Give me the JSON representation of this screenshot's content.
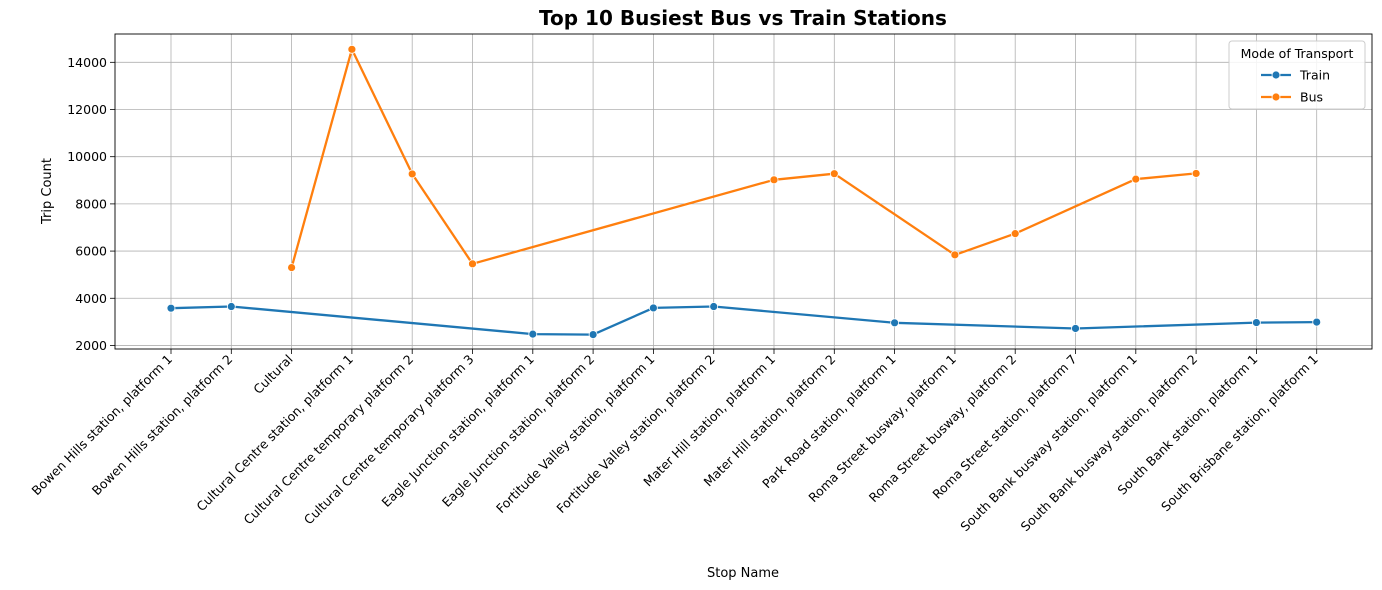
{
  "chart_data": {
    "type": "line",
    "title": "Top 10 Busiest Bus vs Train Stations",
    "xlabel": "Stop Name",
    "ylabel": "Trip Count",
    "ylim": [
      1850,
      15200
    ],
    "yticks": [
      2000,
      4000,
      6000,
      8000,
      10000,
      12000,
      14000
    ],
    "grid": true,
    "legend": {
      "title": "Mode of Transport",
      "placement": "top-right"
    },
    "categories": [
      "Bowen Hills station, platform 1",
      "Bowen Hills station, platform 2",
      "Cultural",
      "Cultural Centre station, platform 1",
      "Cultural Centre temporary platform 2",
      "Cultural Centre temporary platform 3",
      "Eagle Junction station, platform 1",
      "Eagle Junction station, platform 2",
      "Fortitude Valley station, platform 1",
      "Fortitude Valley station, platform 2",
      "Mater Hill station, platform 1",
      "Mater Hill station, platform 2",
      "Park Road station, platform 1",
      "Roma Street busway, platform 1",
      "Roma Street busway, platform 2",
      "Roma Street station, platform 7",
      "South Bank busway station, platform 1",
      "South Bank busway station, platform 2",
      "South Bank station, platform 1",
      "South Brisbane station, platform 1"
    ],
    "series": [
      {
        "name": "Train",
        "color": "#1f77b4",
        "points": [
          [
            0,
            3580
          ],
          [
            1,
            3650
          ],
          [
            6,
            2480
          ],
          [
            7,
            2460
          ],
          [
            8,
            3590
          ],
          [
            9,
            3650
          ],
          [
            12,
            2960
          ],
          [
            15,
            2720
          ],
          [
            18,
            2970
          ],
          [
            19,
            2990
          ]
        ]
      },
      {
        "name": "Bus",
        "color": "#ff7f0e",
        "points": [
          [
            2,
            5300
          ],
          [
            3,
            14550
          ],
          [
            4,
            9270
          ],
          [
            5,
            5460
          ],
          [
            10,
            9020
          ],
          [
            11,
            9280
          ],
          [
            13,
            5840
          ],
          [
            14,
            6740
          ],
          [
            16,
            9050
          ],
          [
            17,
            9290
          ]
        ]
      }
    ]
  }
}
